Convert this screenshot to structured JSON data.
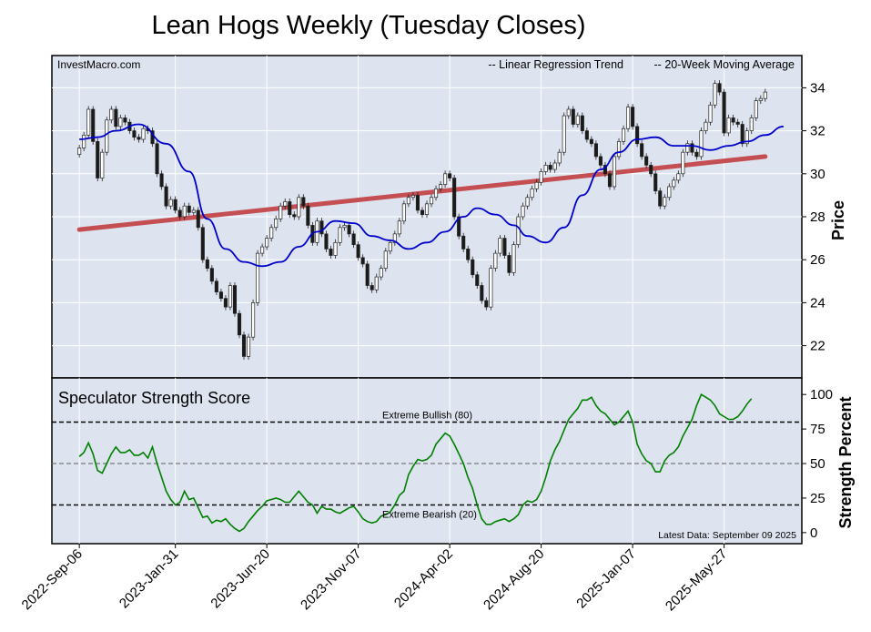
{
  "title": "Lean Hogs Weekly (Tuesday Closes)",
  "colors": {
    "panel_bg": "#dde3ef",
    "regression": "#c44e52",
    "moving_average": "#0000cc",
    "strength": "#008000",
    "up_candle": "#ffffff",
    "down_candle": "#1a1a1a"
  },
  "chart_data": [
    {
      "type": "candlestick",
      "watermark": "InvestMacro.com",
      "ylabel": "Price",
      "ylim": [
        20.5,
        35.5
      ],
      "yticks": [
        "22",
        "24",
        "26",
        "28",
        "30",
        "32",
        "34"
      ],
      "xlim": [
        -6,
        158
      ],
      "xtick_labels": [
        "2022-Sep-06",
        "2023-Jan-31",
        "2023-Jun-20",
        "2023-Nov-07",
        "2024-Apr-02",
        "2024-Aug-20",
        "2025-Jan-07",
        "2025-May-27"
      ],
      "xtick_positions": [
        0,
        21,
        41,
        61,
        81,
        101,
        121,
        141
      ],
      "legend": [
        {
          "label": "-- Linear Regression Trend",
          "key": "regression"
        },
        {
          "label": "-- 20-Week Moving Average",
          "key": "ma"
        }
      ],
      "legend_position": "top-right",
      "regression": {
        "start": 27.4,
        "end": 30.8
      },
      "closes": [
        31.2,
        31.8,
        33.0,
        31.5,
        29.8,
        31.0,
        32.5,
        33.0,
        32.2,
        32.6,
        32.4,
        32.0,
        31.7,
        31.6,
        32.1,
        32.0,
        31.4,
        30.0,
        29.4,
        28.5,
        28.8,
        28.3,
        28.0,
        28.5,
        28.2,
        28.3,
        27.5,
        26.0,
        25.6,
        25.0,
        24.5,
        24.2,
        23.8,
        24.8,
        23.5,
        22.5,
        21.5,
        22.4,
        24.0,
        26.3,
        26.6,
        27.0,
        27.5,
        27.9,
        28.5,
        28.7,
        28.1,
        28.0,
        28.9,
        28.5,
        27.6,
        26.8,
        27.8,
        27.2,
        26.5,
        26.2,
        26.8,
        27.5,
        27.6,
        27.2,
        26.7,
        26.1,
        25.8,
        24.8,
        24.6,
        25.2,
        25.6,
        26.4,
        26.8,
        27.2,
        27.8,
        28.6,
        28.9,
        29.0,
        28.3,
        28.1,
        28.6,
        28.9,
        29.3,
        29.5,
        30.0,
        29.8,
        28.0,
        27.1,
        26.5,
        26.0,
        25.3,
        24.8,
        24.1,
        23.8,
        25.6,
        26.3,
        27.0,
        26.2,
        25.4,
        26.7,
        28.0,
        28.5,
        28.9,
        29.3,
        29.6,
        30.1,
        30.4,
        30.2,
        30.5,
        31.0,
        32.7,
        33.0,
        32.3,
        32.7,
        32.0,
        31.6,
        31.4,
        30.8,
        30.4,
        30.0,
        29.4,
        30.8,
        31.5,
        32.1,
        33.1,
        32.2,
        31.4,
        30.8,
        30.4,
        30.0,
        29.2,
        28.5,
        28.9,
        29.4,
        29.7,
        30.0,
        31.0,
        31.4,
        31.0,
        30.8,
        32.0,
        32.4,
        33.2,
        34.2,
        33.8,
        31.9,
        32.6,
        32.4,
        32.3,
        31.4,
        32.0,
        32.6,
        33.4,
        33.5,
        33.8
      ],
      "moving_average": [
        [
          0,
          31.6
        ],
        [
          4,
          31.7
        ],
        [
          8,
          32.0
        ],
        [
          13,
          32.3
        ],
        [
          19,
          31.4
        ],
        [
          24,
          30.1
        ],
        [
          28,
          27.9
        ],
        [
          32,
          26.5
        ],
        [
          36,
          25.9
        ],
        [
          40,
          25.7
        ],
        [
          44,
          25.9
        ],
        [
          48,
          26.6
        ],
        [
          52,
          27.3
        ],
        [
          56,
          27.8
        ],
        [
          60,
          27.7
        ],
        [
          64,
          27.1
        ],
        [
          68,
          26.9
        ],
        [
          72,
          26.5
        ],
        [
          76,
          26.8
        ],
        [
          80,
          27.3
        ],
        [
          84,
          28.0
        ],
        [
          87,
          28.4
        ],
        [
          91,
          28.1
        ],
        [
          95,
          27.6
        ],
        [
          98,
          27.1
        ],
        [
          102,
          26.8
        ],
        [
          106,
          27.5
        ],
        [
          110,
          29.0
        ],
        [
          114,
          30.2
        ],
        [
          118,
          31.0
        ],
        [
          122,
          31.6
        ],
        [
          126,
          31.7
        ],
        [
          130,
          31.3
        ],
        [
          134,
          31.3
        ],
        [
          138,
          31.1
        ],
        [
          142,
          31.3
        ],
        [
          146,
          31.5
        ],
        [
          150,
          31.8
        ],
        [
          154,
          32.2
        ]
      ]
    },
    {
      "type": "line",
      "title": "Speculator Strength Score",
      "ylabel": "Strength Percent",
      "ylim": [
        -8,
        112
      ],
      "yticks": [
        "0",
        "25",
        "50",
        "75",
        "100"
      ],
      "extreme_bullish": {
        "label": "Extreme Bullish (80)",
        "value": 80
      },
      "extreme_bearish": {
        "label": "Extreme Bearish (20)",
        "value": 20
      },
      "midline": 50,
      "latest_data": "Latest Data: September 09 2025",
      "series": [
        [
          0,
          55
        ],
        [
          1,
          58
        ],
        [
          2,
          65
        ],
        [
          3,
          57
        ],
        [
          4,
          45
        ],
        [
          5,
          43
        ],
        [
          6,
          50
        ],
        [
          7,
          57
        ],
        [
          8,
          62
        ],
        [
          9,
          58
        ],
        [
          10,
          58
        ],
        [
          11,
          60
        ],
        [
          12,
          56
        ],
        [
          13,
          56
        ],
        [
          14,
          58
        ],
        [
          15,
          54
        ],
        [
          16,
          62
        ],
        [
          17,
          50
        ],
        [
          18,
          40
        ],
        [
          19,
          30
        ],
        [
          20,
          24
        ],
        [
          21,
          20
        ],
        [
          22,
          22
        ],
        [
          23,
          30
        ],
        [
          24,
          24
        ],
        [
          25,
          25
        ],
        [
          26,
          18
        ],
        [
          27,
          11
        ],
        [
          28,
          12
        ],
        [
          29,
          7
        ],
        [
          30,
          9
        ],
        [
          31,
          8
        ],
        [
          32,
          10
        ],
        [
          33,
          6
        ],
        [
          34,
          3
        ],
        [
          35,
          1
        ],
        [
          36,
          3
        ],
        [
          37,
          8
        ],
        [
          38,
          12
        ],
        [
          39,
          16
        ],
        [
          40,
          19
        ],
        [
          41,
          23
        ],
        [
          42,
          24
        ],
        [
          43,
          25
        ],
        [
          44,
          24
        ],
        [
          45,
          22
        ],
        [
          46,
          22
        ],
        [
          47,
          26
        ],
        [
          48,
          30
        ],
        [
          49,
          26
        ],
        [
          50,
          22
        ],
        [
          51,
          20
        ],
        [
          52,
          14
        ],
        [
          53,
          19
        ],
        [
          54,
          17
        ],
        [
          55,
          17
        ],
        [
          56,
          15
        ],
        [
          57,
          14
        ],
        [
          58,
          16
        ],
        [
          59,
          18
        ],
        [
          60,
          19
        ],
        [
          61,
          15
        ],
        [
          62,
          10
        ],
        [
          63,
          8
        ],
        [
          64,
          7
        ],
        [
          65,
          8
        ],
        [
          66,
          12
        ],
        [
          67,
          13
        ],
        [
          68,
          15
        ],
        [
          69,
          20
        ],
        [
          70,
          27
        ],
        [
          71,
          30
        ],
        [
          72,
          42
        ],
        [
          73,
          48
        ],
        [
          74,
          53
        ],
        [
          75,
          52
        ],
        [
          76,
          53
        ],
        [
          77,
          56
        ],
        [
          78,
          64
        ],
        [
          79,
          68
        ],
        [
          80,
          72
        ],
        [
          81,
          70
        ],
        [
          82,
          64
        ],
        [
          83,
          57
        ],
        [
          84,
          50
        ],
        [
          85,
          40
        ],
        [
          86,
          32
        ],
        [
          87,
          20
        ],
        [
          88,
          10
        ],
        [
          89,
          6
        ],
        [
          90,
          6
        ],
        [
          91,
          8
        ],
        [
          92,
          9
        ],
        [
          93,
          10
        ],
        [
          94,
          8
        ],
        [
          95,
          10
        ],
        [
          96,
          13
        ],
        [
          97,
          20
        ],
        [
          98,
          23
        ],
        [
          99,
          22
        ],
        [
          100,
          24
        ],
        [
          101,
          30
        ],
        [
          102,
          40
        ],
        [
          103,
          52
        ],
        [
          104,
          60
        ],
        [
          105,
          66
        ],
        [
          106,
          74
        ],
        [
          107,
          82
        ],
        [
          108,
          86
        ],
        [
          109,
          90
        ],
        [
          110,
          96
        ],
        [
          111,
          96
        ],
        [
          112,
          98
        ],
        [
          113,
          92
        ],
        [
          114,
          88
        ],
        [
          115,
          86
        ],
        [
          116,
          82
        ],
        [
          117,
          78
        ],
        [
          118,
          80
        ],
        [
          119,
          84
        ],
        [
          120,
          88
        ],
        [
          121,
          80
        ],
        [
          122,
          64
        ],
        [
          123,
          57
        ],
        [
          124,
          52
        ],
        [
          125,
          50
        ],
        [
          126,
          44
        ],
        [
          127,
          44
        ],
        [
          128,
          52
        ],
        [
          129,
          56
        ],
        [
          130,
          58
        ],
        [
          131,
          62
        ],
        [
          132,
          70
        ],
        [
          133,
          76
        ],
        [
          134,
          82
        ],
        [
          135,
          92
        ],
        [
          136,
          100
        ],
        [
          137,
          98
        ],
        [
          138,
          96
        ],
        [
          139,
          92
        ],
        [
          140,
          86
        ],
        [
          141,
          84
        ],
        [
          142,
          82
        ],
        [
          143,
          82
        ],
        [
          144,
          84
        ],
        [
          145,
          88
        ],
        [
          146,
          93
        ],
        [
          147,
          97
        ]
      ]
    }
  ]
}
